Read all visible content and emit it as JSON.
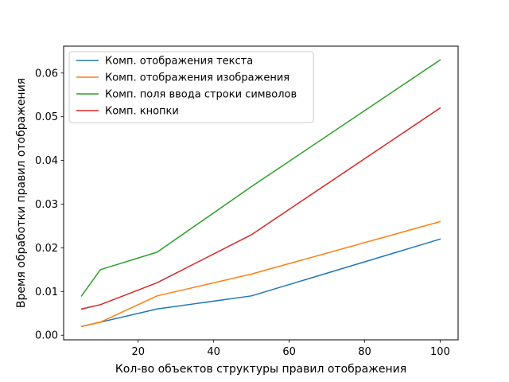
{
  "chart_data": {
    "type": "line",
    "title": "",
    "xlabel": "Кол-во объектов структуры правил отображения",
    "ylabel": "Время обработки правил отображения",
    "xlim": [
      0.25,
      104.75
    ],
    "ylim": [
      -0.00105,
      0.06615
    ],
    "xticks": [
      20,
      40,
      60,
      80,
      100
    ],
    "xtick_labels": [
      "20",
      "40",
      "60",
      "80",
      "100"
    ],
    "yticks": [
      0.0,
      0.01,
      0.02,
      0.03,
      0.04,
      0.05,
      0.06
    ],
    "ytick_labels": [
      "0.00",
      "0.01",
      "0.02",
      "0.03",
      "0.04",
      "0.05",
      "0.06"
    ],
    "grid": false,
    "legend_position": "top-left",
    "x": [
      5,
      10,
      25,
      50,
      100
    ],
    "series": [
      {
        "name": "Комп. отображения текста",
        "color": "#1f77b4",
        "values": [
          0.002,
          0.003,
          0.006,
          0.009,
          0.022
        ]
      },
      {
        "name": "Комп. отображения изображения",
        "color": "#ff7f0e",
        "values": [
          0.002,
          0.003,
          0.009,
          0.014,
          0.026
        ]
      },
      {
        "name": "Комп. поля ввода строки символов",
        "color": "#2ca02c",
        "values": [
          0.009,
          0.015,
          0.019,
          0.034,
          0.063
        ]
      },
      {
        "name": "Комп. кнопки",
        "color": "#d62728",
        "values": [
          0.006,
          0.007,
          0.012,
          0.023,
          0.052
        ]
      }
    ]
  }
}
